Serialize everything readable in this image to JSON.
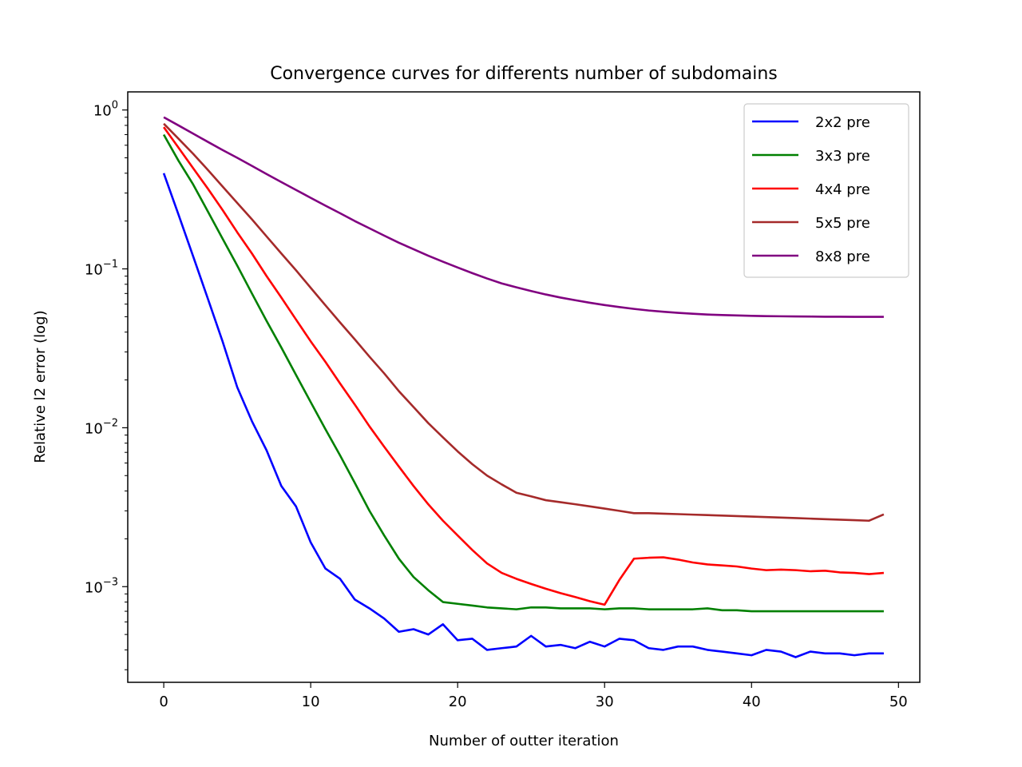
{
  "chart_data": {
    "type": "line",
    "title": "Convergence curves for differents number of subdomains",
    "xlabel": "Number of outter iteration",
    "ylabel": "Relative l2 error (log)",
    "yscale": "log",
    "xlim": [
      -2.45,
      51.45
    ],
    "ylim": [
      0.00025,
      1.3
    ],
    "x_ticks": [
      0,
      10,
      20,
      30,
      40,
      50
    ],
    "y_ticks": [
      {
        "value": 1,
        "base": "10",
        "exp": "0"
      },
      {
        "value": 0.1,
        "base": "10",
        "exp": "−1"
      },
      {
        "value": 0.01,
        "base": "10",
        "exp": "−2"
      },
      {
        "value": 0.001,
        "base": "10",
        "exp": "−3"
      }
    ],
    "grid": false,
    "legend_position": "upper right",
    "series": [
      {
        "name": "2x2 pre",
        "color": "#0000ff",
        "values": [
          0.4,
          0.22,
          0.12,
          0.065,
          0.035,
          0.018,
          0.011,
          0.0072,
          0.0043,
          0.0032,
          0.0019,
          0.0013,
          0.00112,
          0.00083,
          0.00073,
          0.00063,
          0.00052,
          0.00054,
          0.0005,
          0.00058,
          0.00046,
          0.00047,
          0.0004,
          0.00041,
          0.00042,
          0.00049,
          0.00042,
          0.00043,
          0.00041,
          0.00045,
          0.00042,
          0.00047,
          0.00046,
          0.00041,
          0.0004,
          0.00042,
          0.00042,
          0.0004,
          0.00039,
          0.00038,
          0.00037,
          0.0004,
          0.00039,
          0.00036,
          0.00039,
          0.00038,
          0.00038,
          0.00037,
          0.00038,
          0.00038
        ]
      },
      {
        "name": "3x3 pre",
        "color": "#008000",
        "values": [
          0.7,
          0.48,
          0.34,
          0.23,
          0.155,
          0.105,
          0.07,
          0.047,
          0.032,
          0.0215,
          0.0145,
          0.0098,
          0.0067,
          0.0045,
          0.003,
          0.0021,
          0.0015,
          0.00115,
          0.00095,
          0.0008,
          0.00078,
          0.00076,
          0.00074,
          0.00073,
          0.00072,
          0.00074,
          0.00074,
          0.00073,
          0.00073,
          0.00073,
          0.00072,
          0.00073,
          0.00073,
          0.00072,
          0.00072,
          0.00072,
          0.00072,
          0.00073,
          0.00071,
          0.00071,
          0.0007,
          0.0007,
          0.0007,
          0.0007,
          0.0007,
          0.0007,
          0.0007,
          0.0007,
          0.0007,
          0.0007
        ]
      },
      {
        "name": "4x4 pre",
        "color": "#ff0000",
        "values": [
          0.78,
          0.58,
          0.43,
          0.32,
          0.235,
          0.17,
          0.125,
          0.09,
          0.066,
          0.048,
          0.035,
          0.026,
          0.019,
          0.014,
          0.0102,
          0.0076,
          0.0057,
          0.0043,
          0.0033,
          0.0026,
          0.0021,
          0.0017,
          0.0014,
          0.00122,
          0.00112,
          0.00104,
          0.00097,
          0.00091,
          0.00086,
          0.00081,
          0.00077,
          0.0011,
          0.0015,
          0.00152,
          0.00153,
          0.00148,
          0.00142,
          0.00138,
          0.00136,
          0.00134,
          0.0013,
          0.00127,
          0.00128,
          0.00127,
          0.00125,
          0.00126,
          0.00123,
          0.00122,
          0.0012,
          0.00122
        ]
      },
      {
        "name": "5x5 pre",
        "color": "#a52a2a",
        "values": [
          0.82,
          0.66,
          0.53,
          0.42,
          0.33,
          0.26,
          0.205,
          0.16,
          0.125,
          0.098,
          0.076,
          0.059,
          0.046,
          0.036,
          0.028,
          0.022,
          0.017,
          0.0135,
          0.0107,
          0.0087,
          0.0071,
          0.0059,
          0.005,
          0.0044,
          0.0039,
          0.0037,
          0.0035,
          0.0034,
          0.0033,
          0.0032,
          0.0031,
          0.003,
          0.0029,
          0.0029,
          0.00288,
          0.00286,
          0.00284,
          0.00282,
          0.0028,
          0.00278,
          0.00276,
          0.00274,
          0.00272,
          0.0027,
          0.00268,
          0.00266,
          0.00264,
          0.00262,
          0.0026,
          0.00285
        ]
      },
      {
        "name": "8x8 pre",
        "color": "#800080",
        "values": [
          0.9,
          0.8,
          0.71,
          0.63,
          0.56,
          0.5,
          0.445,
          0.395,
          0.352,
          0.314,
          0.28,
          0.25,
          0.224,
          0.2,
          0.18,
          0.162,
          0.146,
          0.133,
          0.121,
          0.111,
          0.102,
          0.094,
          0.087,
          0.081,
          0.0765,
          0.0725,
          0.069,
          0.066,
          0.0635,
          0.0612,
          0.0592,
          0.0575,
          0.056,
          0.0547,
          0.0537,
          0.0529,
          0.0522,
          0.0516,
          0.0512,
          0.0509,
          0.0506,
          0.0504,
          0.0503,
          0.0502,
          0.0501,
          0.05,
          0.05,
          0.0499,
          0.0499,
          0.0499
        ]
      }
    ]
  }
}
